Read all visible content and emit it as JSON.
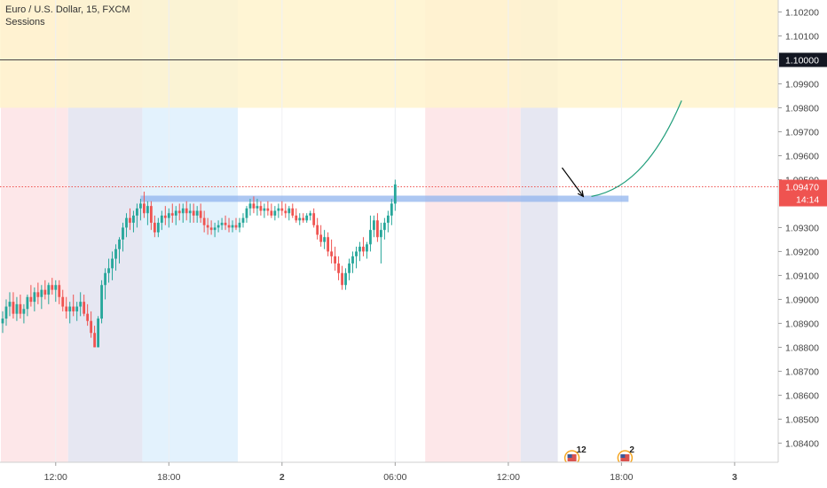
{
  "header": {
    "symbol": "Euro / U.S. Dollar, 15, FXCM",
    "indicator": "Sessions"
  },
  "colors": {
    "up": "#26a69a",
    "down": "#ef5350",
    "session_asia": "#fde7e9",
    "session_europe": "#e6e7f2",
    "session_us": "#e3f2fd",
    "target_zone": "#fff3cd",
    "support_line": "#90b4ee",
    "price_line": "#ef5350",
    "arrow": "#000000",
    "projection": "#1f9d7a"
  },
  "chart_data": {
    "type": "candlestick",
    "timeframe": "15",
    "x_axis": {
      "ticks": [
        {
          "label": "12:00",
          "bar": 15
        },
        {
          "label": "18:00",
          "bar": 47
        },
        {
          "label": "2",
          "bar": 79
        },
        {
          "label": "06:00",
          "bar": 111
        },
        {
          "label": "12:00",
          "bar": 143
        },
        {
          "label": "18:00",
          "bar": 175
        },
        {
          "label": "3",
          "bar": 207
        }
      ]
    },
    "y_axis": {
      "range": [
        1.0832,
        1.1025
      ],
      "ticks": [
        "1.10200",
        "1.10100",
        "1.09900",
        "1.09800",
        "1.09700",
        "1.09600",
        "1.09500",
        "1.09300",
        "1.09200",
        "1.09100",
        "1.09000",
        "1.08900",
        "1.08800",
        "1.08700",
        "1.08600",
        "1.08500",
        "1.08400"
      ]
    },
    "last_price": {
      "value": "1.09470",
      "price": 1.0947,
      "countdown": "14:14"
    },
    "level": {
      "value": "1.10000",
      "price": 1.1
    },
    "target_zone": {
      "from": 1.098,
      "to": 1.1025
    },
    "support_level": 1.0942,
    "sessions": [
      {
        "type": "asia",
        "from": 0,
        "to": 19
      },
      {
        "type": "europe",
        "from": 19,
        "to": 40
      },
      {
        "type": "us",
        "from": 40,
        "to": 67
      },
      {
        "type": "asia",
        "from": 120,
        "to": 147
      },
      {
        "type": "europe",
        "from": 147,
        "to": 157.5
      }
    ],
    "events": [
      {
        "label": "12",
        "bar": 161
      },
      {
        "label": "2",
        "bar": 176
      }
    ],
    "candles": [
      [
        1.089,
        1.0895,
        1.0886,
        1.0892
      ],
      [
        1.0892,
        1.09,
        1.0889,
        1.0897
      ],
      [
        1.0897,
        1.0903,
        1.0893,
        1.0899
      ],
      [
        1.0899,
        1.0903,
        1.0892,
        1.0894
      ],
      [
        1.0894,
        1.0901,
        1.0891,
        1.0898
      ],
      [
        1.0898,
        1.0902,
        1.0892,
        1.0894
      ],
      [
        1.0894,
        1.0898,
        1.089,
        1.0896
      ],
      [
        1.0896,
        1.0902,
        1.0893,
        1.0901
      ],
      [
        1.0901,
        1.0906,
        1.0897,
        1.0899
      ],
      [
        1.0899,
        1.0905,
        1.0895,
        1.0903
      ],
      [
        1.0903,
        1.0907,
        1.0898,
        1.0901
      ],
      [
        1.0901,
        1.0906,
        1.0896,
        1.0904
      ],
      [
        1.0904,
        1.0908,
        1.09,
        1.0902
      ],
      [
        1.0902,
        1.0907,
        1.0898,
        1.0906
      ],
      [
        1.0906,
        1.0909,
        1.0902,
        1.0904
      ],
      [
        1.0904,
        1.0908,
        1.0899,
        1.0906
      ],
      [
        1.0906,
        1.0908,
        1.0898,
        1.0901
      ],
      [
        1.0901,
        1.0904,
        1.0895,
        1.0897
      ],
      [
        1.0897,
        1.0901,
        1.0892,
        1.0895
      ],
      [
        1.0895,
        1.0899,
        1.089,
        1.0897
      ],
      [
        1.0897,
        1.0902,
        1.0893,
        1.0895
      ],
      [
        1.0895,
        1.0899,
        1.0891,
        1.0897
      ],
      [
        1.0897,
        1.0903,
        1.0893,
        1.0899
      ],
      [
        1.0899,
        1.0902,
        1.0893,
        1.0894
      ],
      [
        1.0894,
        1.0898,
        1.0889,
        1.0891
      ],
      [
        1.0891,
        1.0895,
        1.0884,
        1.0886
      ],
      [
        1.0886,
        1.0889,
        1.088,
        1.088
      ],
      [
        1.088,
        1.0893,
        1.088,
        1.0892
      ],
      [
        1.0892,
        1.0908,
        1.089,
        1.0906
      ],
      [
        1.0906,
        1.0913,
        1.09,
        1.0911
      ],
      [
        1.0911,
        1.0917,
        1.0907,
        1.0913
      ],
      [
        1.0913,
        1.092,
        1.0908,
        1.0917
      ],
      [
        1.0917,
        1.0923,
        1.0912,
        1.0921
      ],
      [
        1.0921,
        1.0926,
        1.0915,
        1.0925
      ],
      [
        1.0925,
        1.0932,
        1.092,
        1.093
      ],
      [
        1.093,
        1.0936,
        1.0926,
        1.0934
      ],
      [
        1.0934,
        1.0938,
        1.0929,
        1.0932
      ],
      [
        1.0932,
        1.0937,
        1.0928,
        1.0935
      ],
      [
        1.0935,
        1.094,
        1.093,
        1.0938
      ],
      [
        1.0938,
        1.0942,
        1.0933,
        1.094
      ],
      [
        1.094,
        1.0945,
        1.0934,
        1.0936
      ],
      [
        1.0936,
        1.0941,
        1.0931,
        1.0939
      ],
      [
        1.0939,
        1.0941,
        1.0929,
        1.0932
      ],
      [
        1.0932,
        1.0935,
        1.0926,
        1.0928
      ],
      [
        1.0928,
        1.0934,
        1.0926,
        1.0932
      ],
      [
        1.0932,
        1.0937,
        1.0929,
        1.0935
      ],
      [
        1.0935,
        1.0939,
        1.0931,
        1.0934
      ],
      [
        1.0934,
        1.0938,
        1.093,
        1.0936
      ],
      [
        1.0936,
        1.094,
        1.0932,
        1.0935
      ],
      [
        1.0935,
        1.0939,
        1.0931,
        1.0937
      ],
      [
        1.0937,
        1.094,
        1.0933,
        1.0936
      ],
      [
        1.0936,
        1.094,
        1.0932,
        1.0938
      ],
      [
        1.0938,
        1.0941,
        1.0933,
        1.0936
      ],
      [
        1.0936,
        1.094,
        1.0932,
        1.0937
      ],
      [
        1.0937,
        1.094,
        1.0932,
        1.0935
      ],
      [
        1.0935,
        1.0939,
        1.0932,
        1.0937
      ],
      [
        1.0937,
        1.094,
        1.0932,
        1.0934
      ],
      [
        1.0934,
        1.0937,
        1.0928,
        1.0931
      ],
      [
        1.0931,
        1.0934,
        1.0927,
        1.093
      ],
      [
        1.093,
        1.0933,
        1.0927,
        1.0929
      ],
      [
        1.0929,
        1.0932,
        1.0926,
        1.093
      ],
      [
        1.093,
        1.0933,
        1.0928,
        1.0931
      ],
      [
        1.0931,
        1.0934,
        1.0929,
        1.0932
      ],
      [
        1.0932,
        1.0935,
        1.0929,
        1.0931
      ],
      [
        1.0931,
        1.0934,
        1.0928,
        1.093
      ],
      [
        1.093,
        1.0933,
        1.0928,
        1.0931
      ],
      [
        1.0931,
        1.0934,
        1.0929,
        1.093
      ],
      [
        1.093,
        1.0934,
        1.0928,
        1.0932
      ],
      [
        1.0932,
        1.0936,
        1.093,
        1.0934
      ],
      [
        1.0934,
        1.0939,
        1.0932,
        1.0938
      ],
      [
        1.0938,
        1.0942,
        1.0935,
        1.094
      ],
      [
        1.094,
        1.0943,
        1.0936,
        1.0938
      ],
      [
        1.0938,
        1.0942,
        1.0935,
        1.0939
      ],
      [
        1.0939,
        1.0941,
        1.0935,
        1.0937
      ],
      [
        1.0937,
        1.094,
        1.0934,
        1.0938
      ],
      [
        1.0938,
        1.0941,
        1.0935,
        1.0937
      ],
      [
        1.0937,
        1.094,
        1.0934,
        1.0935
      ],
      [
        1.0935,
        1.0939,
        1.0933,
        1.0937
      ],
      [
        1.0937,
        1.094,
        1.0934,
        1.0938
      ],
      [
        1.0938,
        1.0941,
        1.0935,
        1.0937
      ],
      [
        1.0937,
        1.094,
        1.0934,
        1.0936
      ],
      [
        1.0936,
        1.0939,
        1.0933,
        1.0938
      ],
      [
        1.0938,
        1.094,
        1.0934,
        1.0935
      ],
      [
        1.0935,
        1.0938,
        1.0932,
        1.0933
      ],
      [
        1.0933,
        1.0936,
        1.0931,
        1.0934
      ],
      [
        1.0934,
        1.0936,
        1.0932,
        1.0933
      ],
      [
        1.0933,
        1.0936,
        1.0932,
        1.0935
      ],
      [
        1.0935,
        1.0937,
        1.0933,
        1.0936
      ],
      [
        1.0936,
        1.0938,
        1.093,
        1.0931
      ],
      [
        1.0931,
        1.0934,
        1.0925,
        1.0927
      ],
      [
        1.0927,
        1.0931,
        1.0922,
        1.0924
      ],
      [
        1.0924,
        1.0929,
        1.0921,
        1.0926
      ],
      [
        1.0926,
        1.0928,
        1.0918,
        1.092
      ],
      [
        1.092,
        1.0925,
        1.0915,
        1.0918
      ],
      [
        1.0918,
        1.0922,
        1.0912,
        1.0915
      ],
      [
        1.0915,
        1.0918,
        1.0908,
        1.0911
      ],
      [
        1.0911,
        1.0914,
        1.0904,
        1.0906
      ],
      [
        1.0906,
        1.0913,
        1.0904,
        1.0911
      ],
      [
        1.0911,
        1.0917,
        1.0908,
        1.0915
      ],
      [
        1.0915,
        1.092,
        1.0911,
        1.0918
      ],
      [
        1.0918,
        1.0922,
        1.0913,
        1.092
      ],
      [
        1.092,
        1.0924,
        1.0916,
        1.0922
      ],
      [
        1.0922,
        1.0926,
        1.0918,
        1.092
      ],
      [
        1.092,
        1.0924,
        1.0917,
        1.0923
      ],
      [
        1.0923,
        1.0935,
        1.092,
        1.0929
      ],
      [
        1.0929,
        1.0935,
        1.0926,
        1.0933
      ],
      [
        1.0933,
        1.0936,
        1.0924,
        1.0926
      ],
      [
        1.0926,
        1.0932,
        1.0915,
        1.0929
      ],
      [
        1.0929,
        1.0934,
        1.0925,
        1.0932
      ],
      [
        1.0932,
        1.0937,
        1.0928,
        1.0935
      ],
      [
        1.0935,
        1.0942,
        1.0931,
        1.094
      ],
      [
        1.094,
        1.095,
        1.0937,
        1.0948
      ]
    ]
  }
}
